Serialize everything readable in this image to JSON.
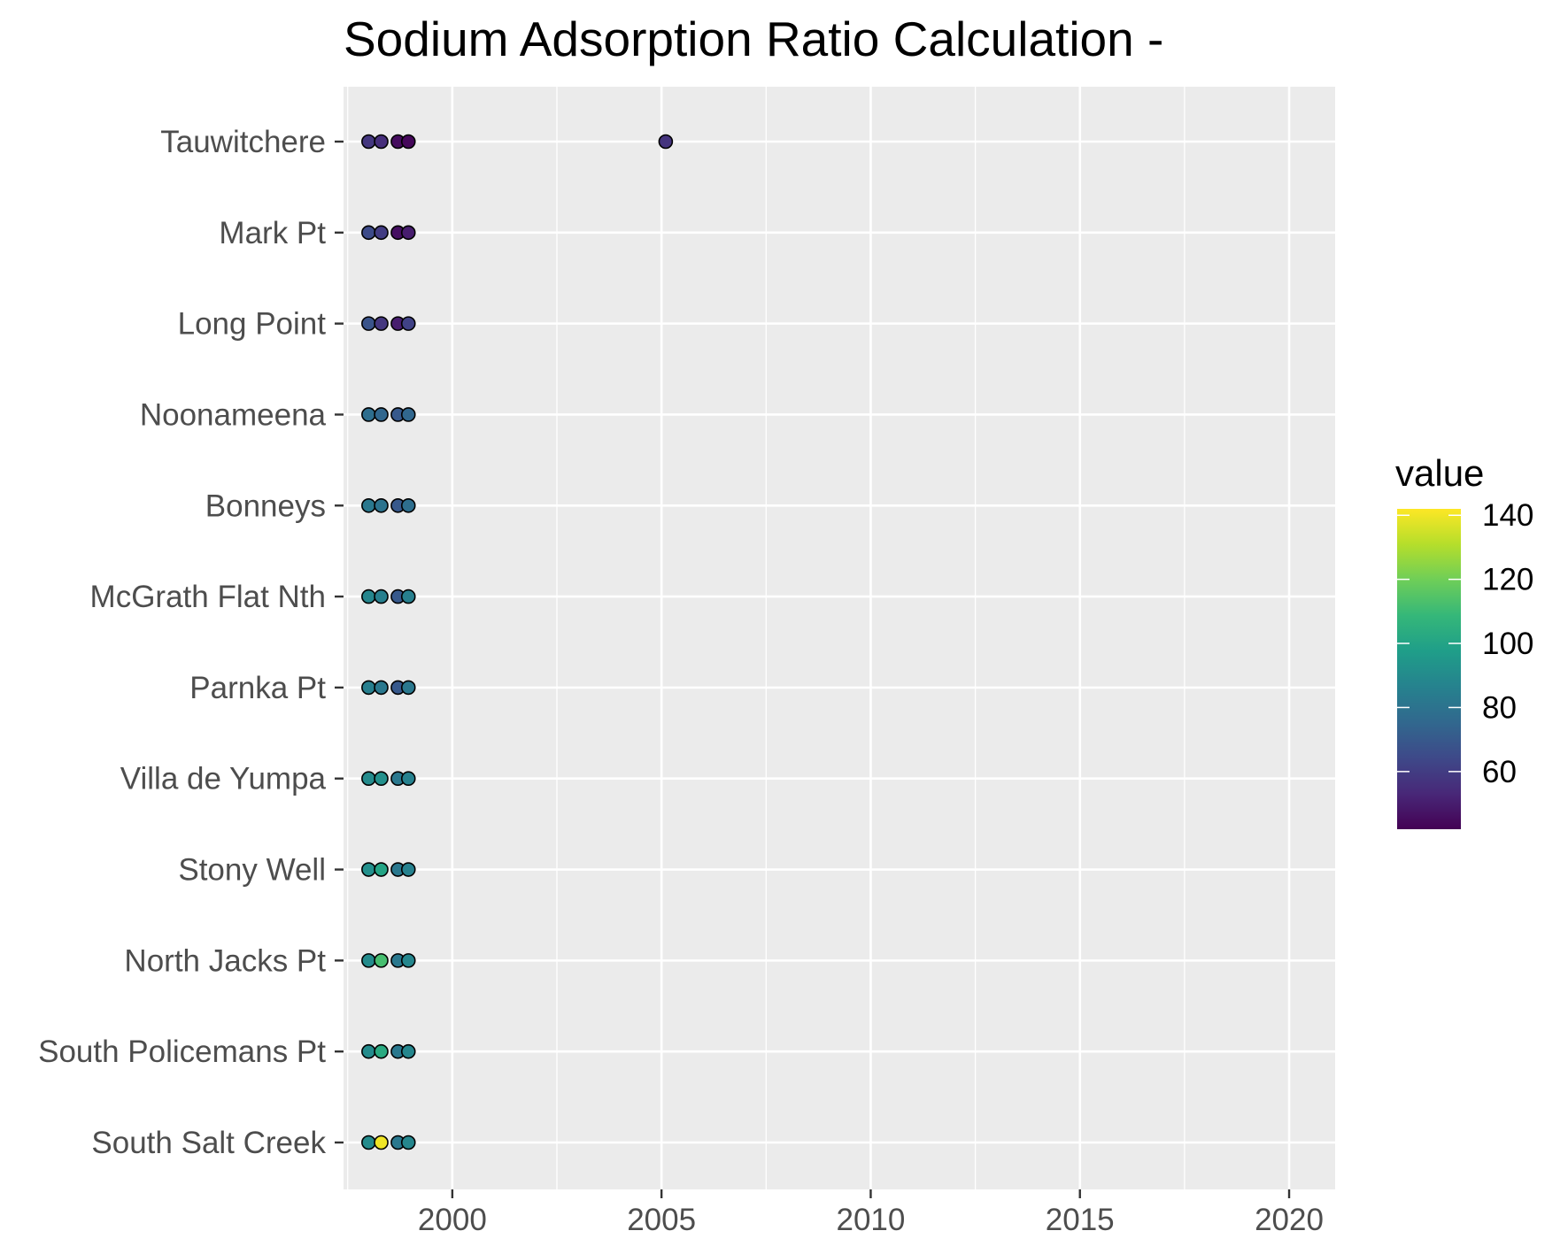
{
  "chart_data": {
    "type": "scatter",
    "title": "Sodium Adsorption Ratio Calculation -",
    "xlabel": "",
    "ylabel": "",
    "xlim": [
      1997.4,
      2021.1
    ],
    "x_ticks": [
      2000,
      2005,
      2010,
      2015,
      2020
    ],
    "grid": true,
    "categories": [
      "South Salt Creek",
      "South Policemans Pt",
      "North Jacks Pt",
      "Stony Well",
      "Villa de Yumpa",
      "Parnka Pt",
      "McGrath Flat Nth",
      "Bonneys",
      "Noonameena",
      "Long Point",
      "Mark Pt",
      "Tauwitchere"
    ],
    "legend": {
      "title": "value",
      "position": "right",
      "range": [
        42,
        142
      ],
      "ticks": [
        60,
        80,
        100,
        120,
        140
      ],
      "palette": [
        "#440154",
        "#482878",
        "#3e4989",
        "#31688e",
        "#26828e",
        "#1f9e89",
        "#35b779",
        "#6ece58",
        "#b5de2b",
        "#fde725"
      ]
    },
    "points": [
      {
        "site": "South Salt Creek",
        "x": 1998.0,
        "value": 90
      },
      {
        "site": "South Salt Creek",
        "x": 1998.3,
        "value": 140
      },
      {
        "site": "South Salt Creek",
        "x": 1998.7,
        "value": 82
      },
      {
        "site": "South Salt Creek",
        "x": 1998.95,
        "value": 88
      },
      {
        "site": "South Policemans Pt",
        "x": 1998.0,
        "value": 90
      },
      {
        "site": "South Policemans Pt",
        "x": 1998.3,
        "value": 103
      },
      {
        "site": "South Policemans Pt",
        "x": 1998.7,
        "value": 82
      },
      {
        "site": "South Policemans Pt",
        "x": 1998.95,
        "value": 88
      },
      {
        "site": "North Jacks Pt",
        "x": 1998.0,
        "value": 90
      },
      {
        "site": "North Jacks Pt",
        "x": 1998.3,
        "value": 112
      },
      {
        "site": "North Jacks Pt",
        "x": 1998.7,
        "value": 82
      },
      {
        "site": "North Jacks Pt",
        "x": 1998.95,
        "value": 88
      },
      {
        "site": "Stony Well",
        "x": 1998.0,
        "value": 92
      },
      {
        "site": "Stony Well",
        "x": 1998.3,
        "value": 100
      },
      {
        "site": "Stony Well",
        "x": 1998.7,
        "value": 82
      },
      {
        "site": "Stony Well",
        "x": 1998.95,
        "value": 86
      },
      {
        "site": "Villa de Yumpa",
        "x": 1998.0,
        "value": 90
      },
      {
        "site": "Villa de Yumpa",
        "x": 1998.3,
        "value": 92
      },
      {
        "site": "Villa de Yumpa",
        "x": 1998.7,
        "value": 82
      },
      {
        "site": "Villa de Yumpa",
        "x": 1998.95,
        "value": 86
      },
      {
        "site": "Parnka Pt",
        "x": 1998.0,
        "value": 85
      },
      {
        "site": "Parnka Pt",
        "x": 1998.3,
        "value": 82
      },
      {
        "site": "Parnka Pt",
        "x": 1998.7,
        "value": 70
      },
      {
        "site": "Parnka Pt",
        "x": 1998.95,
        "value": 82
      },
      {
        "site": "McGrath Flat Nth",
        "x": 1998.0,
        "value": 88
      },
      {
        "site": "McGrath Flat Nth",
        "x": 1998.3,
        "value": 85
      },
      {
        "site": "McGrath Flat Nth",
        "x": 1998.7,
        "value": 70
      },
      {
        "site": "McGrath Flat Nth",
        "x": 1998.95,
        "value": 85
      },
      {
        "site": "Bonneys",
        "x": 1998.0,
        "value": 82
      },
      {
        "site": "Bonneys",
        "x": 1998.3,
        "value": 80
      },
      {
        "site": "Bonneys",
        "x": 1998.7,
        "value": 70
      },
      {
        "site": "Bonneys",
        "x": 1998.95,
        "value": 78
      },
      {
        "site": "Noonameena",
        "x": 1998.0,
        "value": 78
      },
      {
        "site": "Noonameena",
        "x": 1998.3,
        "value": 75
      },
      {
        "site": "Noonameena",
        "x": 1998.7,
        "value": 70
      },
      {
        "site": "Noonameena",
        "x": 1998.95,
        "value": 75
      },
      {
        "site": "Long Point",
        "x": 1998.0,
        "value": 68
      },
      {
        "site": "Long Point",
        "x": 1998.3,
        "value": 58
      },
      {
        "site": "Long Point",
        "x": 1998.7,
        "value": 50
      },
      {
        "site": "Long Point",
        "x": 1998.95,
        "value": 62
      },
      {
        "site": "Mark Pt",
        "x": 1998.0,
        "value": 65
      },
      {
        "site": "Mark Pt",
        "x": 1998.3,
        "value": 60
      },
      {
        "site": "Mark Pt",
        "x": 1998.7,
        "value": 46
      },
      {
        "site": "Mark Pt",
        "x": 1998.95,
        "value": 50
      },
      {
        "site": "Tauwitchere",
        "x": 1998.0,
        "value": 58
      },
      {
        "site": "Tauwitchere",
        "x": 1998.3,
        "value": 55
      },
      {
        "site": "Tauwitchere",
        "x": 1998.7,
        "value": 45
      },
      {
        "site": "Tauwitchere",
        "x": 1998.95,
        "value": 44
      },
      {
        "site": "Tauwitchere",
        "x": 2005.1,
        "value": 57
      }
    ]
  }
}
